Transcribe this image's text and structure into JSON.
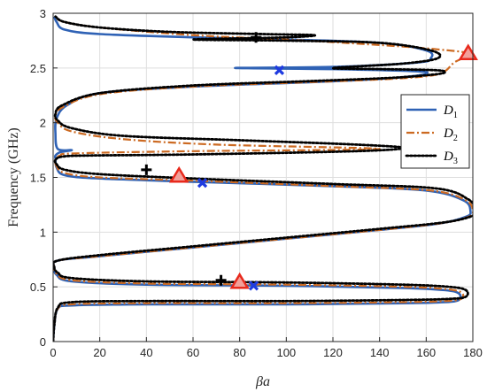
{
  "chart_data": {
    "type": "line",
    "xlabel": "βa",
    "ylabel": "Frequency (GHz)",
    "xlim": [
      0,
      180
    ],
    "ylim": [
      0,
      3
    ],
    "x_ticks": [
      0,
      20,
      40,
      60,
      80,
      100,
      120,
      140,
      160,
      180
    ],
    "y_ticks": [
      0,
      0.5,
      1,
      1.5,
      2,
      2.5,
      3
    ],
    "x_tick_labels": [
      "0",
      "20",
      "40",
      "60",
      "80",
      "100",
      "120",
      "140",
      "160",
      "180"
    ],
    "y_tick_labels": [
      "0",
      "0.5",
      "1",
      "1.5",
      "2",
      "2.5",
      "3"
    ],
    "grid": true,
    "legend_position": "right",
    "series": [
      {
        "name": "D",
        "sub": "1",
        "color": "#2f62b5",
        "style": "solid",
        "points": [
          [
            0,
            0.0
          ],
          [
            0.5,
            0.15
          ],
          [
            2,
            0.3
          ],
          [
            8,
            0.33
          ],
          [
            40,
            0.34
          ],
          [
            100,
            0.34
          ],
          [
            150,
            0.35
          ],
          [
            168,
            0.36
          ],
          [
            174,
            0.38
          ],
          [
            174,
            0.44
          ],
          [
            168,
            0.47
          ],
          [
            150,
            0.49
          ],
          [
            100,
            0.51
          ],
          [
            40,
            0.52
          ],
          [
            8,
            0.55
          ],
          [
            1.5,
            0.61
          ],
          [
            0.5,
            0.68
          ],
          [
            2,
            0.74
          ],
          [
            20,
            0.78
          ],
          [
            60,
            0.86
          ],
          [
            100,
            0.94
          ],
          [
            140,
            1.02
          ],
          [
            166,
            1.08
          ],
          [
            177,
            1.14
          ],
          [
            179,
            1.19
          ],
          [
            176,
            1.29
          ],
          [
            160,
            1.38
          ],
          [
            120,
            1.42
          ],
          [
            60,
            1.46
          ],
          [
            20,
            1.49
          ],
          [
            5,
            1.52
          ],
          [
            1.5,
            1.59
          ],
          [
            1,
            1.67
          ],
          [
            1,
            1.7
          ],
          [
            3,
            1.73
          ],
          [
            8,
            1.75
          ],
          [
            2,
            1.76
          ],
          [
            1,
            1.9
          ],
          [
            1.5,
            2.04
          ],
          [
            6,
            2.16
          ],
          [
            20,
            2.27
          ],
          [
            60,
            2.33
          ],
          [
            110,
            2.37
          ],
          [
            140,
            2.4
          ],
          [
            156,
            2.43
          ],
          [
            160,
            2.45
          ],
          [
            156,
            2.47
          ],
          [
            120,
            2.49
          ],
          [
            78,
            2.5
          ],
          [
            120,
            2.51
          ],
          [
            156,
            2.55
          ],
          [
            162,
            2.59
          ],
          [
            160,
            2.66
          ],
          [
            140,
            2.73
          ],
          [
            100,
            2.76
          ],
          [
            60,
            2.78
          ],
          [
            20,
            2.81
          ],
          [
            5,
            2.85
          ],
          [
            1.5,
            2.92
          ],
          [
            0.5,
            2.97
          ]
        ]
      },
      {
        "name": "D",
        "sub": "2",
        "color": "#cc6a22",
        "style": "dashdot",
        "points": [
          [
            0,
            0.0
          ],
          [
            0.5,
            0.15
          ],
          [
            2,
            0.3
          ],
          [
            8,
            0.34
          ],
          [
            40,
            0.35
          ],
          [
            100,
            0.35
          ],
          [
            150,
            0.36
          ],
          [
            168,
            0.37
          ],
          [
            175,
            0.39
          ],
          [
            175,
            0.45
          ],
          [
            168,
            0.48
          ],
          [
            150,
            0.5
          ],
          [
            100,
            0.52
          ],
          [
            40,
            0.53
          ],
          [
            8,
            0.56
          ],
          [
            1.5,
            0.62
          ],
          [
            0.5,
            0.68
          ],
          [
            2,
            0.74
          ],
          [
            20,
            0.78
          ],
          [
            60,
            0.86
          ],
          [
            100,
            0.94
          ],
          [
            140,
            1.02
          ],
          [
            166,
            1.08
          ],
          [
            178,
            1.14
          ],
          [
            180,
            1.19
          ],
          [
            177,
            1.29
          ],
          [
            162,
            1.38
          ],
          [
            120,
            1.42
          ],
          [
            60,
            1.47
          ],
          [
            20,
            1.5
          ],
          [
            5,
            1.54
          ],
          [
            1.5,
            1.6
          ],
          [
            1,
            1.66
          ],
          [
            3,
            1.7
          ],
          [
            10,
            1.72
          ],
          [
            60,
            1.74
          ],
          [
            140,
            1.76
          ],
          [
            70,
            1.8
          ],
          [
            30,
            1.85
          ],
          [
            8,
            1.92
          ],
          [
            2,
            2.0
          ],
          [
            1,
            2.06
          ],
          [
            4,
            2.14
          ],
          [
            20,
            2.26
          ],
          [
            60,
            2.33
          ],
          [
            110,
            2.37
          ],
          [
            145,
            2.4
          ],
          [
            162,
            2.43
          ],
          [
            168,
            2.47
          ],
          [
            172,
            2.55
          ],
          [
            178,
            2.63
          ],
          [
            165,
            2.67
          ],
          [
            140,
            2.71
          ],
          [
            100,
            2.76
          ],
          [
            60,
            2.8
          ],
          [
            20,
            2.87
          ],
          [
            5,
            2.92
          ],
          [
            1,
            2.96
          ]
        ]
      },
      {
        "name": "D",
        "sub": "3",
        "color": "#000000",
        "style": "dotted",
        "points": [
          [
            0,
            0.0
          ],
          [
            0.5,
            0.15
          ],
          [
            2,
            0.31
          ],
          [
            8,
            0.36
          ],
          [
            40,
            0.37
          ],
          [
            100,
            0.37
          ],
          [
            150,
            0.38
          ],
          [
            170,
            0.39
          ],
          [
            177,
            0.41
          ],
          [
            177,
            0.47
          ],
          [
            170,
            0.5
          ],
          [
            150,
            0.52
          ],
          [
            100,
            0.54
          ],
          [
            40,
            0.55
          ],
          [
            8,
            0.58
          ],
          [
            2,
            0.63
          ],
          [
            0.5,
            0.68
          ],
          [
            2,
            0.74
          ],
          [
            20,
            0.79
          ],
          [
            60,
            0.87
          ],
          [
            100,
            0.95
          ],
          [
            140,
            1.03
          ],
          [
            168,
            1.09
          ],
          [
            180,
            1.15
          ],
          [
            181,
            1.2
          ],
          [
            178,
            1.3
          ],
          [
            164,
            1.4
          ],
          [
            120,
            1.44
          ],
          [
            60,
            1.49
          ],
          [
            20,
            1.53
          ],
          [
            5,
            1.57
          ],
          [
            1.5,
            1.62
          ],
          [
            1,
            1.66
          ],
          [
            4,
            1.69
          ],
          [
            15,
            1.7
          ],
          [
            60,
            1.71
          ],
          [
            130,
            1.74
          ],
          [
            150,
            1.77
          ],
          [
            130,
            1.8
          ],
          [
            80,
            1.84
          ],
          [
            30,
            1.88
          ],
          [
            8,
            1.95
          ],
          [
            2,
            2.02
          ],
          [
            1,
            2.08
          ],
          [
            4,
            2.16
          ],
          [
            20,
            2.27
          ],
          [
            60,
            2.34
          ],
          [
            110,
            2.38
          ],
          [
            145,
            2.41
          ],
          [
            163,
            2.44
          ],
          [
            168,
            2.46
          ],
          [
            164,
            2.48
          ],
          [
            140,
            2.49
          ],
          [
            120,
            2.5
          ],
          [
            150,
            2.54
          ],
          [
            165,
            2.59
          ],
          [
            162,
            2.66
          ],
          [
            140,
            2.73
          ],
          [
            100,
            2.75
          ],
          [
            60,
            2.76
          ],
          [
            100,
            2.78
          ],
          [
            112,
            2.8
          ],
          [
            90,
            2.81
          ],
          [
            50,
            2.83
          ],
          [
            20,
            2.87
          ],
          [
            5,
            2.92
          ],
          [
            1,
            2.97
          ]
        ]
      }
    ],
    "markers": [
      {
        "symbol": "plus",
        "color": "#000000",
        "x": 40,
        "y": 1.57
      },
      {
        "symbol": "plus",
        "color": "#000000",
        "x": 72,
        "y": 0.56
      },
      {
        "symbol": "plus",
        "color": "#000000",
        "x": 87,
        "y": 2.78
      },
      {
        "symbol": "triangle",
        "color": "#e8291c",
        "x": 54,
        "y": 1.51
      },
      {
        "symbol": "triangle",
        "color": "#e8291c",
        "x": 80,
        "y": 0.54
      },
      {
        "symbol": "triangle",
        "color": "#e8291c",
        "x": 178,
        "y": 2.63
      },
      {
        "symbol": "x",
        "color": "#1f3be0",
        "x": 64,
        "y": 1.45
      },
      {
        "symbol": "x",
        "color": "#1f3be0",
        "x": 86,
        "y": 0.51
      },
      {
        "symbol": "x",
        "color": "#1f3be0",
        "x": 97,
        "y": 2.48
      }
    ]
  }
}
